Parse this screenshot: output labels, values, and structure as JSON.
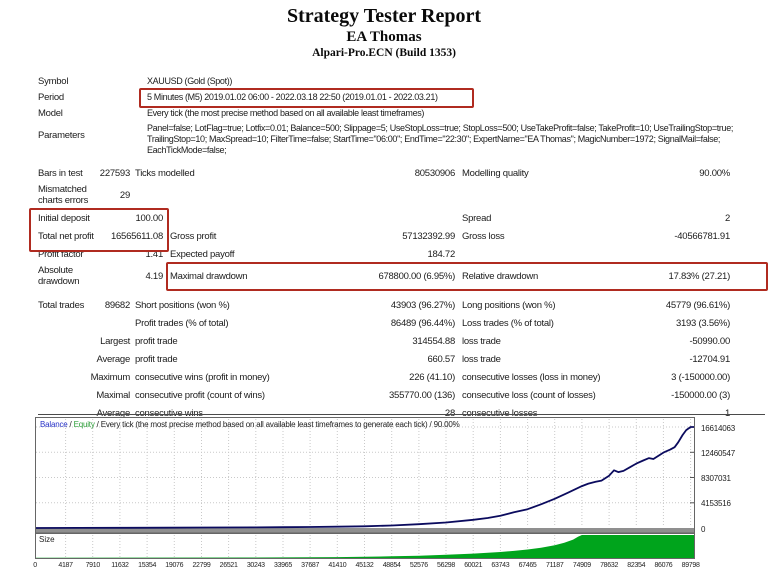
{
  "header": {
    "title": "Strategy Tester Report",
    "expert": "EA Thomas",
    "server": "Alpari-Pro.ECN (Build 1353)"
  },
  "colors": {
    "highlight_red": "#b02b20",
    "balance_blue": "#2a35c8",
    "equity_green": "#2e9e3a",
    "curve_navy": "#0b0b5e",
    "bar_green": "#00a41c",
    "zero_band_gray": "#8f8f8f"
  },
  "table": {
    "cells": [
      [
        "lab",
        76,
        "Symbol"
      ],
      [
        "val",
        76,
        "XAUUSD (Gold (Spot))"
      ],
      [
        "lab",
        92,
        "Period"
      ],
      [
        "val",
        92,
        "5 Minutes (M5) 2019.01.02 06:00 - 2022.03.18 22:50 (2019.01.01 - 2022.03.21)"
      ],
      [
        "lab",
        108,
        "Model"
      ],
      [
        "val",
        108,
        "Every tick (the most precise method based on all available least timeframes)"
      ],
      [
        "lab",
        130,
        "Parameters"
      ],
      [
        "val",
        123,
        "Panel=false; LotFlag=true; Lotfix=0.01; Balance=500; Slippage=5; UseStopLoss=true; StopLoss=500; UseTakeProfit=false; TakeProfit=10; UseTrailingStop=true; TrailingStop=10; MaxSpread=10; FilterTime=false; StartTime=\"06:00\"; EndTime=\"22:30\"; ExpertName=\"EA Thomas\"; MagicNumber=1972; SignalMail=false; EachTickMode=false;"
      ],
      [
        "c1",
        168,
        "Bars in test"
      ],
      [
        "v1n",
        168,
        "227593"
      ],
      [
        "l2n",
        168,
        "Ticks modelled"
      ],
      [
        "v2",
        168,
        "80530906"
      ],
      [
        "l3",
        168,
        "Modelling quality"
      ],
      [
        "v3",
        168,
        "90.00%"
      ],
      [
        "c1",
        184,
        "Mismatched\ncharts errors"
      ],
      [
        "v1n",
        190,
        "29"
      ],
      [
        "c1",
        213,
        "Initial deposit"
      ],
      [
        "v1w",
        213,
        "100.00"
      ],
      [
        "l3",
        213,
        "Spread"
      ],
      [
        "v3",
        213,
        "2"
      ],
      [
        "c1",
        231,
        "Total net profit"
      ],
      [
        "v1w",
        231,
        "16565611.08"
      ],
      [
        "l2w",
        231,
        "Gross profit"
      ],
      [
        "v2",
        231,
        "57132392.99"
      ],
      [
        "l3",
        231,
        "Gross loss"
      ],
      [
        "v3",
        231,
        "-40566781.91"
      ],
      [
        "c1",
        249,
        "Profit factor"
      ],
      [
        "v1w",
        249,
        "1.41"
      ],
      [
        "l2w",
        249,
        "Expected payoff"
      ],
      [
        "v2",
        249,
        "184.72"
      ],
      [
        "c1",
        265,
        "Absolute\ndrawdown"
      ],
      [
        "v1w",
        271,
        "4.19"
      ],
      [
        "l2w",
        271,
        "Maximal drawdown"
      ],
      [
        "v2",
        271,
        "678800.00 (6.95%)"
      ],
      [
        "l3",
        271,
        "Relative drawdown"
      ],
      [
        "v3",
        271,
        "17.83% (27.21)"
      ],
      [
        "c1",
        300,
        "Total trades"
      ],
      [
        "v1n",
        300,
        "89682"
      ],
      [
        "l2n",
        300,
        "Short positions (won %)"
      ],
      [
        "v2",
        300,
        "43903 (96.27%)"
      ],
      [
        "l3",
        300,
        "Long positions (won %)"
      ],
      [
        "v3",
        300,
        "45779 (96.61%)"
      ],
      [
        "l2n",
        318,
        "Profit trades (% of total)"
      ],
      [
        "v2",
        318,
        "86489 (96.44%)"
      ],
      [
        "l3",
        318,
        "Loss trades (% of total)"
      ],
      [
        "v3",
        318,
        "3193 (3.56%)"
      ],
      [
        "sub",
        336,
        "Largest"
      ],
      [
        "l2n",
        336,
        "profit trade"
      ],
      [
        "v2",
        336,
        "314554.88"
      ],
      [
        "l3",
        336,
        "loss trade"
      ],
      [
        "v3",
        336,
        "-50990.00"
      ],
      [
        "sub",
        354,
        "Average"
      ],
      [
        "l2n",
        354,
        "profit trade"
      ],
      [
        "v2",
        354,
        "660.57"
      ],
      [
        "l3",
        354,
        "loss trade"
      ],
      [
        "v3",
        354,
        "-12704.91"
      ],
      [
        "sub",
        372,
        "Maximum"
      ],
      [
        "l2n",
        372,
        "consecutive wins (profit in money)"
      ],
      [
        "v2",
        372,
        "226 (41.10)"
      ],
      [
        "l3",
        372,
        "consecutive losses (loss in money)"
      ],
      [
        "v3",
        372,
        "3 (-150000.00)"
      ],
      [
        "sub",
        390,
        "Maximal"
      ],
      [
        "l2n",
        390,
        "consecutive profit (count of wins)"
      ],
      [
        "v2",
        390,
        "355770.00 (136)"
      ],
      [
        "l3",
        390,
        "consecutive loss (count of losses)"
      ],
      [
        "v3",
        390,
        "-150000.00 (3)"
      ],
      [
        "sub",
        408,
        "Average"
      ],
      [
        "l2n",
        408,
        "consecutive wins"
      ],
      [
        "v2",
        408,
        "28"
      ],
      [
        "l3",
        408,
        "consecutive losses"
      ],
      [
        "v3",
        408,
        "1"
      ]
    ]
  },
  "chart_data": {
    "type": "line",
    "title_parts": {
      "balance": "Balance",
      "sep1": " / ",
      "equity": "Equity",
      "rest": " / Every tick (the most precise method based on all available least timeframes to generate each tick) / 90.00%"
    },
    "x_ticks": [
      0,
      4187,
      7910,
      11632,
      15354,
      19076,
      22799,
      26521,
      30243,
      33965,
      37687,
      41410,
      45132,
      48854,
      52576,
      56298,
      60021,
      63743,
      67465,
      71187,
      74909,
      78632,
      82354,
      86076,
      89798
    ],
    "y_ticks": [
      16614063,
      12460547,
      8307031,
      4153516,
      0
    ],
    "xlim": [
      0,
      90400
    ],
    "ylim": [
      0,
      18260000
    ],
    "grid": "dotted",
    "series": [
      {
        "name": "Balance",
        "color": "#0b0b5e",
        "points": [
          [
            0,
            100
          ],
          [
            6000,
            15000
          ],
          [
            12000,
            35000
          ],
          [
            18000,
            55000
          ],
          [
            24000,
            80000
          ],
          [
            30243,
            105000
          ],
          [
            33965,
            135000
          ],
          [
            37687,
            170000
          ],
          [
            41410,
            215000
          ],
          [
            45132,
            280000
          ],
          [
            48854,
            410000
          ],
          [
            52576,
            620000
          ],
          [
            56298,
            900000
          ],
          [
            60021,
            1350000
          ],
          [
            62000,
            1650000
          ],
          [
            63743,
            2000000
          ],
          [
            65600,
            2600000
          ],
          [
            67465,
            3100000
          ],
          [
            69300,
            3900000
          ],
          [
            71187,
            4800000
          ],
          [
            73000,
            5800000
          ],
          [
            74909,
            6900000
          ],
          [
            75800,
            7300000
          ],
          [
            76800,
            7600000
          ],
          [
            77600,
            7800000
          ],
          [
            78632,
            8600000
          ],
          [
            79300,
            9500000
          ],
          [
            79900,
            9200000
          ],
          [
            80600,
            9400000
          ],
          [
            81500,
            10000000
          ],
          [
            82354,
            10600000
          ],
          [
            83300,
            11100000
          ],
          [
            84100,
            11500000
          ],
          [
            84700,
            11350000
          ],
          [
            85400,
            11900000
          ],
          [
            86076,
            12400000
          ],
          [
            87000,
            12900000
          ],
          [
            87600,
            13300000
          ],
          [
            88100,
            14100000
          ],
          [
            88700,
            15300000
          ],
          [
            89200,
            16100000
          ],
          [
            89798,
            16614063
          ]
        ]
      }
    ],
    "size_panel": {
      "label": "Size",
      "color": "#00a41c",
      "points": [
        [
          0,
          0.015
        ],
        [
          30243,
          0.02
        ],
        [
          37687,
          0.03
        ],
        [
          41410,
          0.04
        ],
        [
          45132,
          0.055
        ],
        [
          48854,
          0.075
        ],
        [
          52576,
          0.1
        ],
        [
          56298,
          0.14
        ],
        [
          60021,
          0.19
        ],
        [
          63743,
          0.26
        ],
        [
          65600,
          0.31
        ],
        [
          67465,
          0.37
        ],
        [
          69300,
          0.45
        ],
        [
          71187,
          0.55
        ],
        [
          72500,
          0.66
        ],
        [
          73700,
          0.8
        ],
        [
          74400,
          0.93
        ],
        [
          74909,
          1.0
        ],
        [
          89798,
          1.0
        ]
      ]
    }
  }
}
